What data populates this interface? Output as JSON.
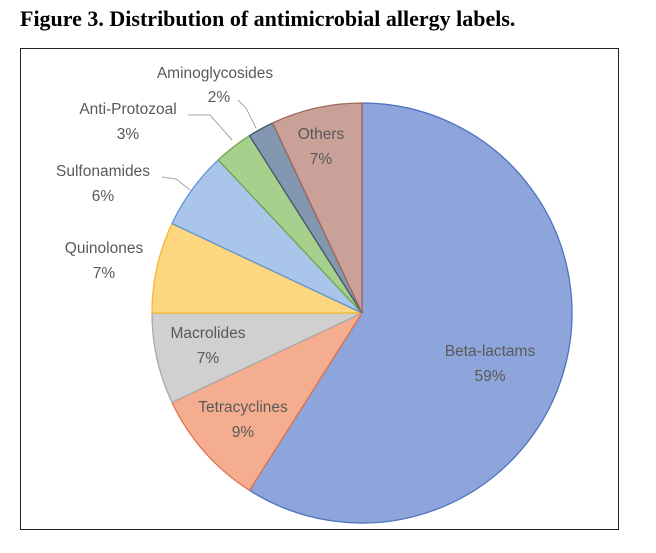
{
  "figure": {
    "title": "Figure 3.  Distribution of antimicrobial allergy labels."
  },
  "chart_data": {
    "type": "pie",
    "title": "",
    "slices": [
      {
        "name": "Beta-lactams",
        "value": 59,
        "label": "59%",
        "color": "#8DA5DA",
        "edge": "#4F72BE"
      },
      {
        "name": "Tetracyclines",
        "value": 9,
        "label": "9%",
        "color": "#F4AE8F",
        "edge": "#E0714A"
      },
      {
        "name": "Macrolides",
        "value": 7,
        "label": "7%",
        "color": "#D0D0D0",
        "edge": "#A8A8A8"
      },
      {
        "name": "Quinolones",
        "value": 7,
        "label": "7%",
        "color": "#FDD77F",
        "edge": "#F2B82E"
      },
      {
        "name": "Sulfonamides",
        "value": 6,
        "label": "6%",
        "color": "#A9C6EA",
        "edge": "#5E93D6"
      },
      {
        "name": "Anti-Protozoal",
        "value": 3,
        "label": "3%",
        "color": "#A8D08D",
        "edge": "#6FA84D"
      },
      {
        "name": "Aminoglycosides",
        "value": 2,
        "label": "2%",
        "color": "#8497B0",
        "edge": "#44546A"
      },
      {
        "name": "Others",
        "value": 7,
        "label": "7%",
        "color": "#C9A199",
        "edge": "#A0665A"
      }
    ],
    "start_direction": "12 o'clock",
    "direction": "clockwise",
    "legend": "none (data labels)"
  }
}
